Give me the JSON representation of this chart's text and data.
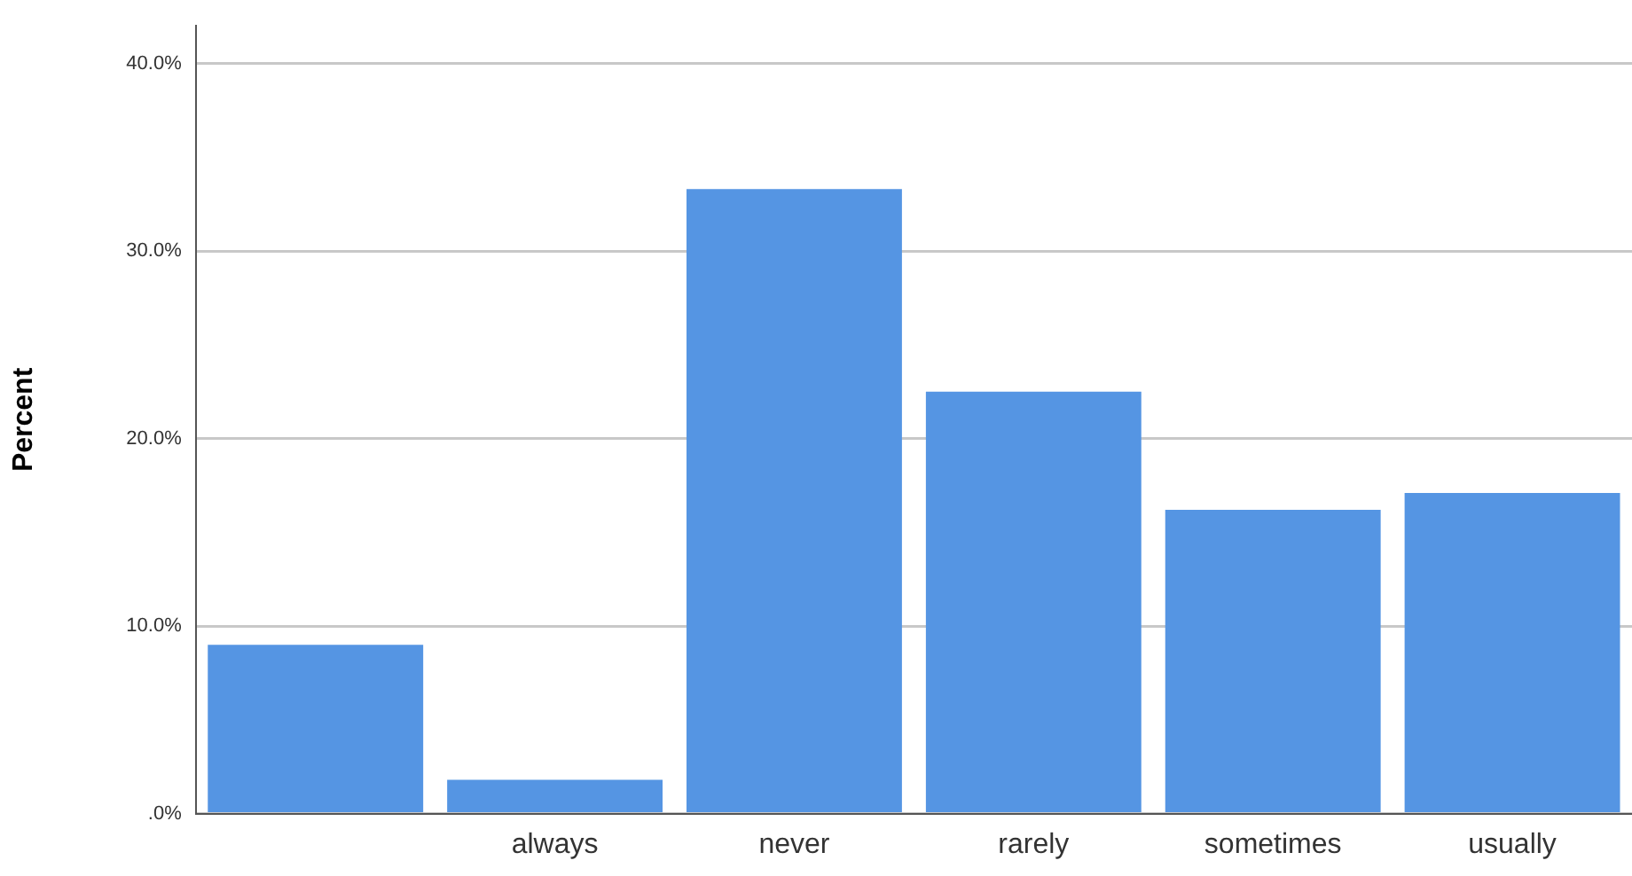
{
  "chart_data": {
    "type": "bar",
    "ylabel": "Percent",
    "categories": [
      null,
      "always",
      "never",
      "rarely",
      "sometimes",
      "usually"
    ],
    "values": [
      9.0,
      1.8,
      33.3,
      22.5,
      16.2,
      17.1
    ],
    "color": "#5595e3",
    "ylim": [
      0,
      42
    ],
    "yticks": [
      {
        "value": 0,
        "label": ".0%"
      },
      {
        "value": 10,
        "label": "10.0%"
      },
      {
        "value": 20,
        "label": "20.0%"
      },
      {
        "value": 30,
        "label": "30.0%"
      },
      {
        "value": 40,
        "label": "40.0%"
      }
    ],
    "grid": "y",
    "legend": false
  }
}
